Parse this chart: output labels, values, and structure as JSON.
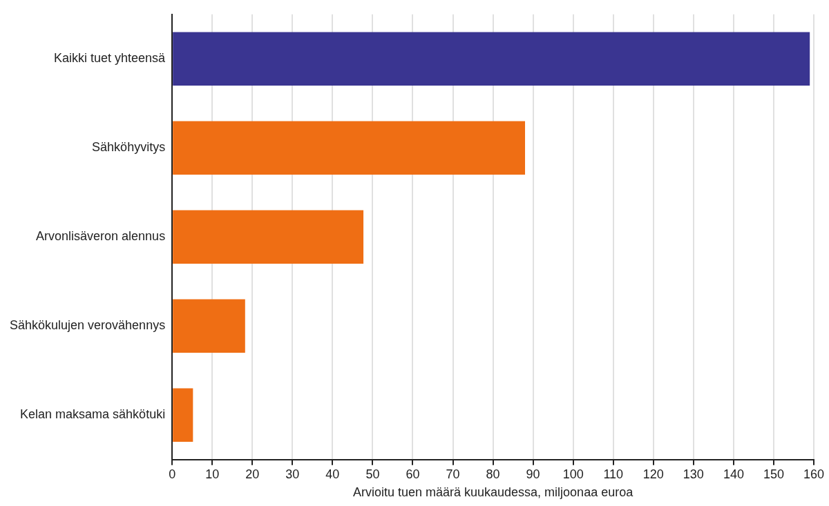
{
  "chart_data": {
    "type": "bar",
    "orientation": "horizontal",
    "xlabel": "Arvioitu tuen määrä kuukaudessa, miljoonaa euroa",
    "categories": [
      "Kaikki tuet yhteensä",
      "Sähköhyvitys",
      "Arvonlisäveron alennus",
      "Sähkökulujen verovähennys",
      "Kelan maksama sähkötuki"
    ],
    "values": [
      159,
      88,
      47.7,
      18.2,
      5.2
    ],
    "colors": [
      "#3a3591",
      "#ef6e14",
      "#ef6e14",
      "#ef6e14",
      "#ef6e14"
    ],
    "xlim": [
      0,
      160
    ],
    "xticks": [
      0,
      10,
      20,
      30,
      40,
      50,
      60,
      70,
      80,
      90,
      100,
      110,
      120,
      130,
      140,
      150,
      160
    ],
    "grid": "x",
    "legend": false
  }
}
